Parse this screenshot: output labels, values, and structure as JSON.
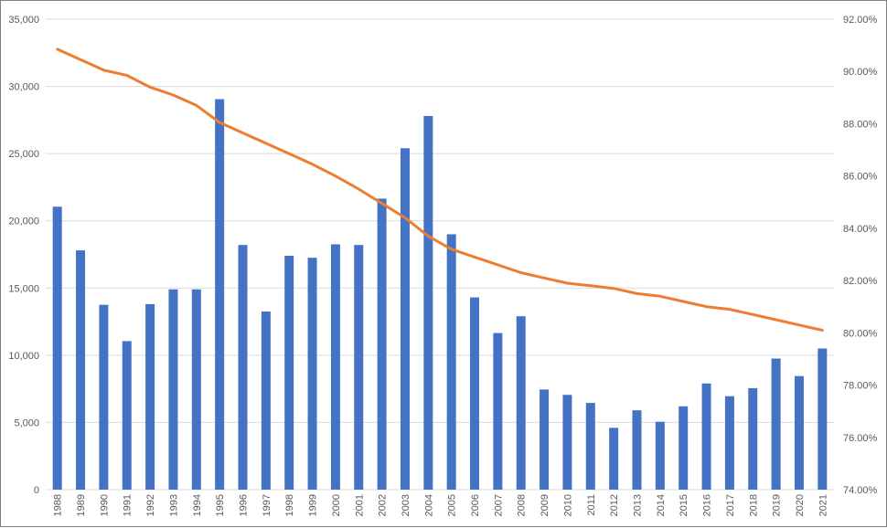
{
  "chart_data": {
    "type": "bar",
    "categories": [
      "1988",
      "1989",
      "1990",
      "1991",
      "1992",
      "1993",
      "1994",
      "1995",
      "1996",
      "1997",
      "1998",
      "1999",
      "2000",
      "2001",
      "2002",
      "2003",
      "2004",
      "2005",
      "2006",
      "2007",
      "2008",
      "2009",
      "2010",
      "2011",
      "2012",
      "2013",
      "2014",
      "2015",
      "2016",
      "2017",
      "2018",
      "2019",
      "2020",
      "2021"
    ],
    "series": [
      {
        "chart_type": "bar",
        "axis": "left",
        "color": "#4472c4",
        "values": [
          21050,
          17800,
          13750,
          11050,
          13800,
          14900,
          14900,
          29050,
          18200,
          13250,
          17400,
          17250,
          18250,
          18200,
          21650,
          25400,
          27800,
          19000,
          14300,
          11650,
          12900,
          7450,
          7050,
          6450,
          4600,
          5900,
          5050,
          6200,
          7900,
          6950,
          7550,
          9750,
          8450,
          10500
        ]
      },
      {
        "chart_type": "line",
        "axis": "right",
        "color": "#ed7d31",
        "values": [
          90.85,
          90.45,
          90.05,
          89.85,
          89.4,
          89.1,
          88.7,
          88.05,
          87.65,
          87.25,
          86.85,
          86.45,
          86.0,
          85.5,
          84.95,
          84.4,
          83.7,
          83.2,
          82.9,
          82.6,
          82.3,
          82.1,
          81.9,
          81.8,
          81.7,
          81.5,
          81.4,
          81.2,
          81.0,
          80.9,
          80.7,
          80.5,
          80.3,
          80.1
        ]
      }
    ],
    "y_left": {
      "min": 0,
      "max": 35000,
      "ticks": [
        "0",
        "5,000",
        "10,000",
        "15,000",
        "20,000",
        "25,000",
        "30,000",
        "35,000"
      ]
    },
    "y_right": {
      "min": 74,
      "max": 92,
      "ticks": [
        "74.00%",
        "76.00%",
        "78.00%",
        "80.00%",
        "82.00%",
        "84.00%",
        "86.00%",
        "88.00%",
        "90.00%",
        "92.00%"
      ]
    },
    "grid": true,
    "legend": "none",
    "title": "",
    "xlabel": "",
    "ylabel": ""
  }
}
